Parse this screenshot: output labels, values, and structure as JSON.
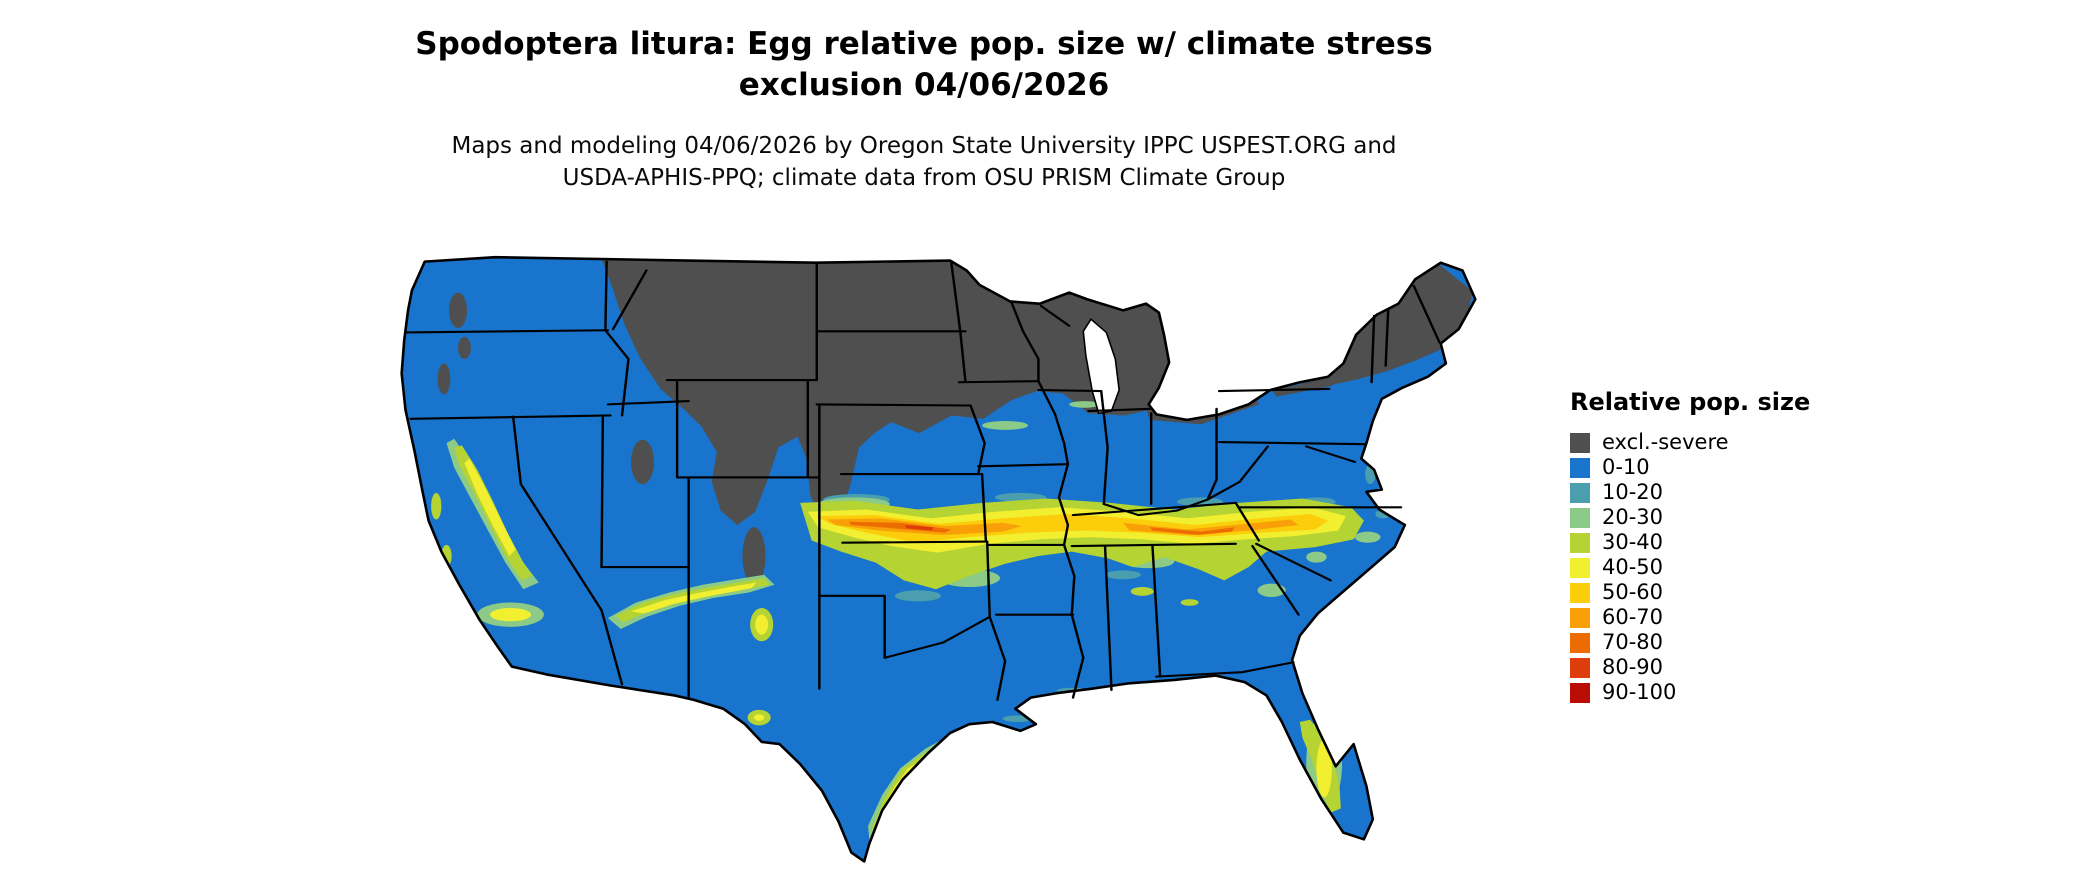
{
  "title": {
    "line1": "Spodoptera litura: Egg relative pop. size w/ climate stress",
    "line2": "exclusion 04/06/2026"
  },
  "subtitle": {
    "line1": "Maps and modeling 04/06/2026 by Oregon State University IPPC USPEST.ORG and",
    "line2": "USDA-APHIS-PPQ; climate data from OSU PRISM Climate Group"
  },
  "legend": {
    "title": "Relative pop. size",
    "items": [
      {
        "label": "excl.-severe",
        "color": "#4f4f4f"
      },
      {
        "label": "0-10",
        "color": "#1874cd"
      },
      {
        "label": "10-20",
        "color": "#4a9eae"
      },
      {
        "label": "20-30",
        "color": "#8ccb87"
      },
      {
        "label": "30-40",
        "color": "#b5d333"
      },
      {
        "label": "40-50",
        "color": "#f2ef30"
      },
      {
        "label": "50-60",
        "color": "#fccd0a"
      },
      {
        "label": "60-70",
        "color": "#f9a008"
      },
      {
        "label": "70-80",
        "color": "#ed6c01"
      },
      {
        "label": "80-90",
        "color": "#dd3d0a"
      },
      {
        "label": "90-100",
        "color": "#b80c05"
      }
    ]
  },
  "chart_data": {
    "type": "heatmap",
    "title": "Spodoptera litura: Egg relative pop. size w/ climate stress exclusion 04/06/2026",
    "subtitle": "Maps and modeling 04/06/2026 by Oregon State University IPPC USPEST.ORG and USDA-APHIS-PPQ; climate data from OSU PRISM Climate Group",
    "map_area": "Contiguous United States",
    "legend_title": "Relative pop. size",
    "legend_position": "right",
    "categories": [
      "excl.-severe",
      "0-10",
      "10-20",
      "20-30",
      "30-40",
      "40-50",
      "50-60",
      "60-70",
      "70-80",
      "80-90",
      "90-100"
    ],
    "colors": [
      "#4f4f4f",
      "#1874cd",
      "#4a9eae",
      "#8ccb87",
      "#b5d333",
      "#f2ef30",
      "#fccd0a",
      "#f9a008",
      "#ed6c01",
      "#dd3d0a",
      "#b80c05"
    ]
  }
}
